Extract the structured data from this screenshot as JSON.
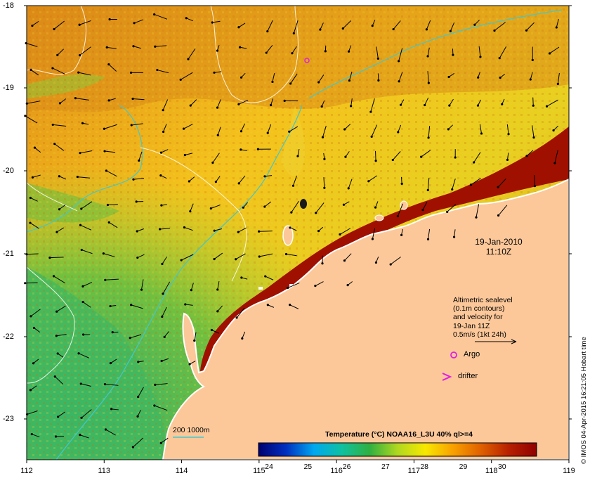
{
  "map": {
    "lon_labels": [
      "112",
      "113",
      "114",
      "115",
      "116",
      "117",
      "118",
      "119"
    ],
    "lat_labels": [
      "-18",
      "-19",
      "-20",
      "-21",
      "-22",
      "-23"
    ],
    "date_line1": "19-Jan-2010",
    "date_line2": "11:10Z",
    "altimetry_note": [
      "Altimetric sealevel",
      "(0.1m contours)",
      "and velocity for",
      "19-Jan 11Z",
      "0.5m/s (1kt 24h)"
    ],
    "legend": {
      "argo_label": "Argo",
      "drifter_label": "drifter",
      "isobath_label": "200  1000m"
    },
    "credit": "© IMOS 04-Apr-2015 16:21:05 Hobart time",
    "land_color": "#fcc89a",
    "sea_warm": "#a01000",
    "sea_cool": "#33b05a"
  },
  "colorbar": {
    "title": "Temperature (°C) NOAA16_L3U 40% ql>=4",
    "ticks": [
      "24",
      "25",
      "26",
      "27",
      "28",
      "29",
      "30"
    ],
    "colors": [
      "#000070",
      "#0030c0",
      "#00a8f0",
      "#10c0a0",
      "#30b040",
      "#b0d820",
      "#f8e800",
      "#f8a000",
      "#e06000",
      "#b82000",
      "#900000"
    ]
  }
}
